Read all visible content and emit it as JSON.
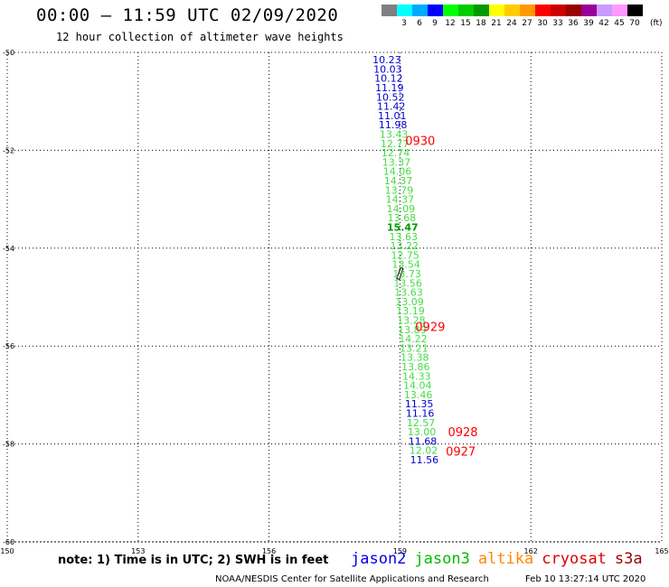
{
  "header": {
    "title": "00:00 – 11:59 UTC 02/09/2020",
    "subtitle": "12 hour collection of altimeter wave heights"
  },
  "color_legend": {
    "unit": "(ft)",
    "bins": [
      {
        "label": "",
        "color": "#808080"
      },
      {
        "label": "3",
        "color": "#00ffff"
      },
      {
        "label": "6",
        "color": "#00aaff"
      },
      {
        "label": "9",
        "color": "#0000ff"
      },
      {
        "label": "12",
        "color": "#00ff00"
      },
      {
        "label": "15",
        "color": "#00cc00"
      },
      {
        "label": "18",
        "color": "#009900"
      },
      {
        "label": "21",
        "color": "#ffff00"
      },
      {
        "label": "24",
        "color": "#ffcc00"
      },
      {
        "label": "27",
        "color": "#ff9900"
      },
      {
        "label": "30",
        "color": "#ff0000"
      },
      {
        "label": "33",
        "color": "#cc0000"
      },
      {
        "label": "36",
        "color": "#990000"
      },
      {
        "label": "39",
        "color": "#990099"
      },
      {
        "label": "42",
        "color": "#cc99ff"
      },
      {
        "label": "45",
        "color": "#ff99ff"
      },
      {
        "label": "70",
        "color": "#000000"
      }
    ]
  },
  "note": "note: 1) Time is in UTC; 2) SWH is in feet",
  "satellites": [
    {
      "name": "jason2",
      "color": "#0000ee"
    },
    {
      "name": "jason3",
      "color": "#00bb00"
    },
    {
      "name": "altika",
      "color": "#ff8800"
    },
    {
      "name": "cryosat",
      "color": "#dd0000"
    },
    {
      "name": "s3a",
      "color": "#990000"
    }
  ],
  "footer": {
    "credit": "NOAA/NESDIS Center for Satellite Applications and Research",
    "timestamp": "Feb 10 13:27:14 UTC 2020"
  },
  "chart_data": {
    "type": "scatter",
    "xlim": [
      150,
      165
    ],
    "ylim": [
      -60,
      -50
    ],
    "x_ticks": [
      "150",
      "153",
      "156",
      "159",
      "162",
      "165"
    ],
    "y_ticks": [
      "-50",
      "-52",
      "-54",
      "-56",
      "-58",
      "-60"
    ],
    "grid": true,
    "color_bar": "#0000cc",
    "color_light": "#44dd44",
    "color_dark": "#009900",
    "color_time": "#ff0000",
    "points": [
      {
        "lon": 158.7,
        "lat": -50.15,
        "v": "10.23",
        "c": "blue"
      },
      {
        "lon": 158.72,
        "lat": -50.34,
        "v": "10.03",
        "c": "blue"
      },
      {
        "lon": 158.74,
        "lat": -50.53,
        "v": "10.12",
        "c": "blue"
      },
      {
        "lon": 158.76,
        "lat": -50.72,
        "v": "11.19",
        "c": "blue"
      },
      {
        "lon": 158.78,
        "lat": -50.91,
        "v": "10.52",
        "c": "blue"
      },
      {
        "lon": 158.8,
        "lat": -51.1,
        "v": "11.42",
        "c": "blue"
      },
      {
        "lon": 158.82,
        "lat": -51.29,
        "v": "11.01",
        "c": "blue"
      },
      {
        "lon": 158.84,
        "lat": -51.48,
        "v": "11.98",
        "c": "blue"
      },
      {
        "lon": 158.86,
        "lat": -51.67,
        "v": "13.43",
        "c": "light"
      },
      {
        "lon": 158.88,
        "lat": -51.86,
        "v": "12.77",
        "c": "light"
      },
      {
        "lon": 158.9,
        "lat": -52.05,
        "v": "12.74",
        "c": "light"
      },
      {
        "lon": 158.92,
        "lat": -52.24,
        "v": "13.37",
        "c": "light"
      },
      {
        "lon": 158.94,
        "lat": -52.43,
        "v": "14.06",
        "c": "light"
      },
      {
        "lon": 158.96,
        "lat": -52.62,
        "v": "14.37",
        "c": "light"
      },
      {
        "lon": 158.98,
        "lat": -52.81,
        "v": "13.79",
        "c": "light"
      },
      {
        "lon": 159.0,
        "lat": -53.0,
        "v": "14.37",
        "c": "light"
      },
      {
        "lon": 159.02,
        "lat": -53.19,
        "v": "14.09",
        "c": "light"
      },
      {
        "lon": 159.04,
        "lat": -53.38,
        "v": "13.68",
        "c": "light"
      },
      {
        "lon": 159.06,
        "lat": -53.57,
        "v": "15.47",
        "c": "dark"
      },
      {
        "lon": 159.08,
        "lat": -53.76,
        "v": "13.63",
        "c": "light"
      },
      {
        "lon": 159.1,
        "lat": -53.95,
        "v": "13.22",
        "c": "light"
      },
      {
        "lon": 159.12,
        "lat": -54.14,
        "v": "12.75",
        "c": "light"
      },
      {
        "lon": 159.14,
        "lat": -54.33,
        "v": "13.54",
        "c": "light"
      },
      {
        "lon": 159.16,
        "lat": -54.52,
        "v": "13.73",
        "c": "light"
      },
      {
        "lon": 159.18,
        "lat": -54.71,
        "v": "13.56",
        "c": "light"
      },
      {
        "lon": 159.2,
        "lat": -54.9,
        "v": "13.63",
        "c": "light"
      },
      {
        "lon": 159.22,
        "lat": -55.09,
        "v": "13.09",
        "c": "light"
      },
      {
        "lon": 159.24,
        "lat": -55.28,
        "v": "13.19",
        "c": "light"
      },
      {
        "lon": 159.26,
        "lat": -55.47,
        "v": "13.28",
        "c": "light"
      },
      {
        "lon": 159.28,
        "lat": -55.66,
        "v": "13.89",
        "c": "light"
      },
      {
        "lon": 159.3,
        "lat": -55.85,
        "v": "14.22",
        "c": "light"
      },
      {
        "lon": 159.32,
        "lat": -56.04,
        "v": "13.21",
        "c": "light"
      },
      {
        "lon": 159.34,
        "lat": -56.23,
        "v": "13.38",
        "c": "light"
      },
      {
        "lon": 159.36,
        "lat": -56.42,
        "v": "13.86",
        "c": "light"
      },
      {
        "lon": 159.38,
        "lat": -56.61,
        "v": "14.33",
        "c": "light"
      },
      {
        "lon": 159.4,
        "lat": -56.8,
        "v": "14.04",
        "c": "light"
      },
      {
        "lon": 159.42,
        "lat": -56.99,
        "v": "13.46",
        "c": "light"
      },
      {
        "lon": 159.44,
        "lat": -57.18,
        "v": "11.35",
        "c": "blue"
      },
      {
        "lon": 159.46,
        "lat": -57.37,
        "v": "11.16",
        "c": "blue"
      },
      {
        "lon": 159.48,
        "lat": -57.56,
        "v": "12.57",
        "c": "light"
      },
      {
        "lon": 159.5,
        "lat": -57.75,
        "v": "13.00",
        "c": "light"
      },
      {
        "lon": 159.52,
        "lat": -57.94,
        "v": "11.68",
        "c": "blue"
      },
      {
        "lon": 159.54,
        "lat": -58.13,
        "v": "12.02",
        "c": "light"
      },
      {
        "lon": 159.56,
        "lat": -58.32,
        "v": "11.56",
        "c": "blue"
      }
    ],
    "time_labels": [
      {
        "lon": 159.12,
        "lat": -51.8,
        "text": "0930"
      },
      {
        "lon": 159.35,
        "lat": -55.6,
        "text": "0929"
      },
      {
        "lon": 160.1,
        "lat": -57.75,
        "text": "0928"
      },
      {
        "lon": 160.05,
        "lat": -58.15,
        "text": "0927"
      }
    ]
  }
}
